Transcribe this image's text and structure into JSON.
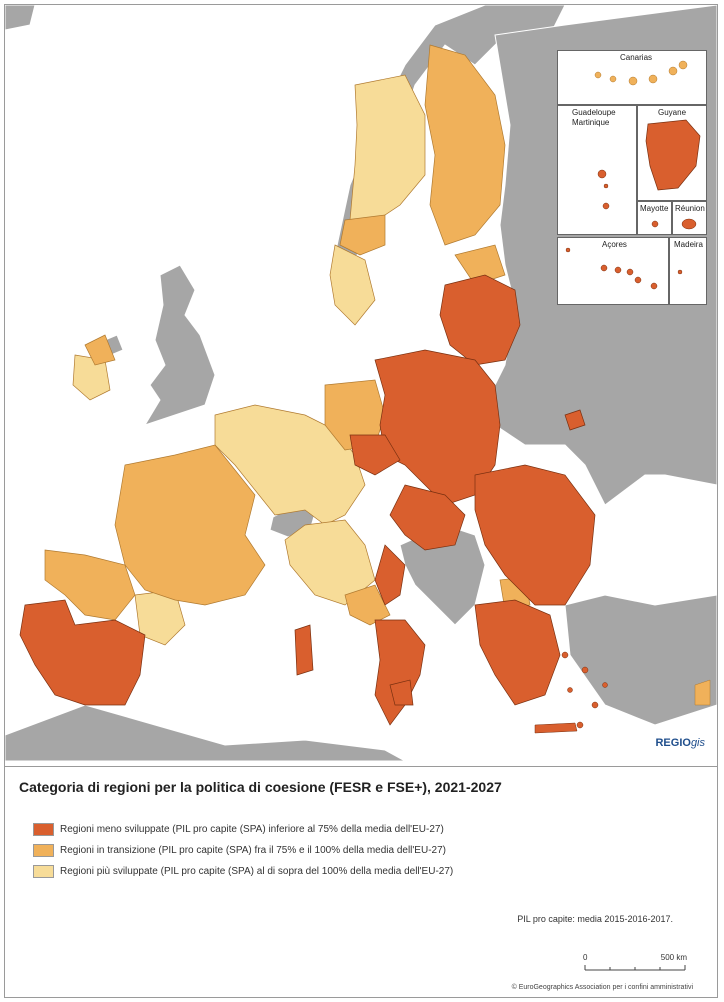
{
  "map": {
    "colors": {
      "sea": "#ffffff",
      "non_eu": "#a6a6a6",
      "less_developed": "#d95f2e",
      "transition": "#f0b15a",
      "more_developed": "#f7dc98",
      "border": "#7a5a2a"
    },
    "insets": {
      "canarias": "Canarias",
      "guadeloupe": "Guadeloupe",
      "martinique": "Martinique",
      "guyane": "Guyane",
      "mayotte": "Mayotte",
      "reunion": "Réunion",
      "acores": "Açores",
      "madeira": "Madeira"
    },
    "brand": {
      "regio": "REGIO",
      "gis": "gis"
    }
  },
  "legend": {
    "title": "Categoria di regioni per la politica di coesione (FESR e FSE+), 2021-2027",
    "items": [
      {
        "label": "Regioni meno sviluppate (PIL pro capite (SPA) inferiore al 75% della media dell'EU-27)",
        "color": "#d95f2e"
      },
      {
        "label": "Regioni in transizione (PIL pro capite (SPA) fra il 75% e il 100% della media dell'EU-27)",
        "color": "#f0b15a"
      },
      {
        "label": "Regioni più sviluppate (PIL pro capite (SPA) al di sopra del 100% della media dell'EU-27)",
        "color": "#f7dc98"
      }
    ],
    "note": "PIL pro capite: media 2015-2016-2017.",
    "scale": {
      "start": "0",
      "end": "500 km"
    },
    "copyright": "© EuroGeographics Association per i confini amministrativi"
  }
}
